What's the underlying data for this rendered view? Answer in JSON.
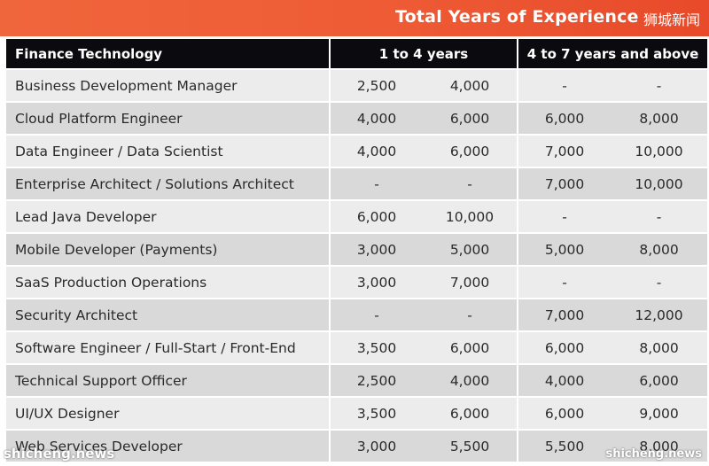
{
  "banner": {
    "title": "Total Years of Experience",
    "watermark": "狮城新闻"
  },
  "header": {
    "role": "Finance Technology",
    "band1": "1 to 4 years",
    "band2": "4 to 7 years and above"
  },
  "rows": [
    {
      "role": "Business Development Manager",
      "v": [
        "2,500",
        "4,000",
        "-",
        "-"
      ]
    },
    {
      "role": "Cloud Platform Engineer",
      "v": [
        "4,000",
        "6,000",
        "6,000",
        "8,000"
      ]
    },
    {
      "role": "Data Engineer / Data Scientist",
      "v": [
        "4,000",
        "6,000",
        "7,000",
        "10,000"
      ]
    },
    {
      "role": "Enterprise Architect / Solutions Architect",
      "v": [
        "-",
        "-",
        "7,000",
        "10,000"
      ]
    },
    {
      "role": "Lead Java Developer",
      "v": [
        "6,000",
        "10,000",
        "-",
        "-"
      ]
    },
    {
      "role": "Mobile Developer (Payments)",
      "v": [
        "3,000",
        "5,000",
        "5,000",
        "8,000"
      ]
    },
    {
      "role": "SaaS Production Operations",
      "v": [
        "3,000",
        "7,000",
        "-",
        "-"
      ]
    },
    {
      "role": "Security Architect",
      "v": [
        "-",
        "-",
        "7,000",
        "12,000"
      ]
    },
    {
      "role": "Software Engineer / Full-Start / Front-End",
      "v": [
        "3,500",
        "6,000",
        "6,000",
        "8,000"
      ]
    },
    {
      "role": "Technical Support Officer",
      "v": [
        "2,500",
        "4,000",
        "4,000",
        "6,000"
      ]
    },
    {
      "role": "UI/UX Designer",
      "v": [
        "3,500",
        "6,000",
        "6,000",
        "9,000"
      ]
    },
    {
      "role": "Web Services Developer",
      "v": [
        "3,000",
        "5,500",
        "5,500",
        "8,000"
      ]
    }
  ],
  "watermarks": {
    "bottom_left": "shicheng.news",
    "bottom_right": "shicheng.news"
  }
}
